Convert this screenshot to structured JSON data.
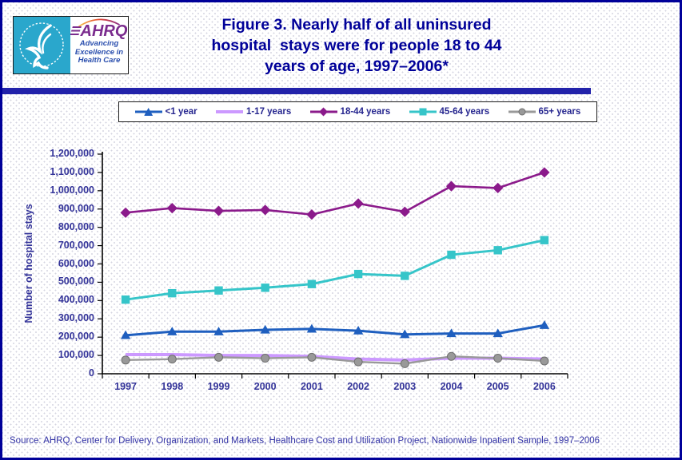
{
  "header": {
    "logo": {
      "org": "AHRQ",
      "tagline_lines": [
        "Advancing",
        "Excellence in",
        "Health Care"
      ],
      "seal_color": "#2AA7CC",
      "wordmark_color": "#7B2C8E",
      "tagline_color": "#2B4FAE"
    },
    "title_lines": [
      "Figure 3. Nearly half of all uninsured",
      "hospital  stays were for people 18 to 44",
      "years of age, 1997–2006*"
    ],
    "title_color": "#000099",
    "rule_color": "#2222AA"
  },
  "chart_data": {
    "type": "line",
    "title": "Figure 3. Nearly half of all uninsured hospital stays were for people 18 to 44 years of age, 1997–2006*",
    "categories": [
      "1997",
      "1998",
      "1999",
      "2000",
      "2001",
      "2002",
      "2003",
      "2004",
      "2005",
      "2006"
    ],
    "series": [
      {
        "name": "<1 year",
        "color": "#1F5FBF",
        "marker": "triangle",
        "values": [
          210000,
          230000,
          230000,
          240000,
          245000,
          235000,
          215000,
          220000,
          220000,
          265000
        ]
      },
      {
        "name": "1-17 years",
        "color": "#CC99FF",
        "marker": "none",
        "values": [
          105000,
          105000,
          100000,
          100000,
          95000,
          80000,
          75000,
          85000,
          85000,
          80000
        ]
      },
      {
        "name": "18-44 years",
        "color": "#8B1A8B",
        "marker": "diamond",
        "values": [
          880000,
          905000,
          890000,
          895000,
          870000,
          930000,
          885000,
          1025000,
          1015000,
          1100000
        ]
      },
      {
        "name": "45-64 years",
        "color": "#36C5C9",
        "marker": "square",
        "values": [
          405000,
          440000,
          455000,
          470000,
          490000,
          545000,
          535000,
          650000,
          675000,
          730000
        ]
      },
      {
        "name": "65+ years",
        "color": "#999999",
        "marker": "circle",
        "values": [
          75000,
          80000,
          90000,
          85000,
          90000,
          65000,
          55000,
          95000,
          85000,
          70000
        ]
      }
    ],
    "xlabel": "",
    "ylabel": "Number of hospital stays",
    "ylim": [
      0,
      1200000
    ],
    "ytick_step": 100000,
    "ytick_labels": [
      "0",
      "100,000",
      "200,000",
      "300,000",
      "400,000",
      "500,000",
      "600,000",
      "700,000",
      "800,000",
      "900,000",
      "1,000,000",
      "1,100,000",
      "1,200,000"
    ],
    "legend_position": "top",
    "grid": false
  },
  "footer": {
    "source": "Source: AHRQ, Center for Delivery, Organization, and Markets, Healthcare Cost and Utilization Project, Nationwide Inpatient Sample, 1997–2006"
  }
}
